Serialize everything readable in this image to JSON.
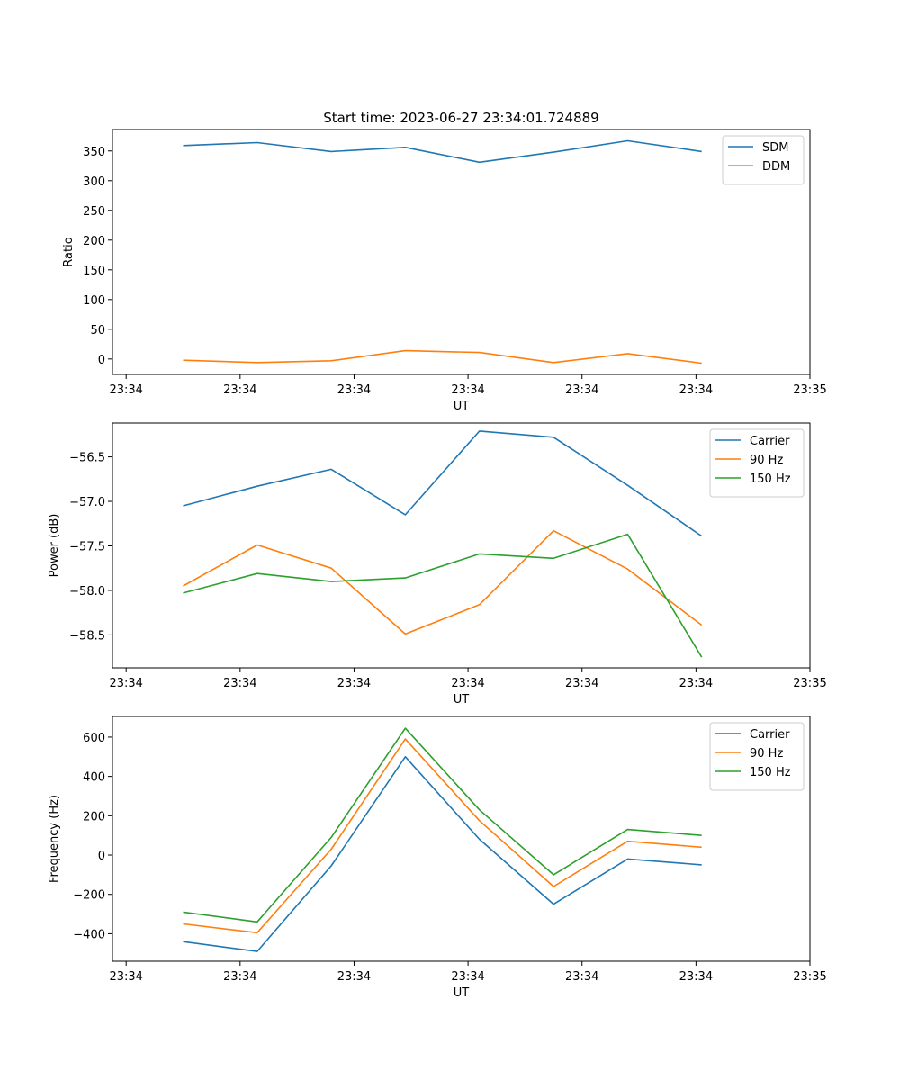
{
  "figure": {
    "title": "Start time: 2023-06-27 23:34:01.724889"
  },
  "colors": {
    "blue": "#1f77b4",
    "orange": "#ff7f0e",
    "green": "#2ca02c",
    "axis": "#000000",
    "legend_border": "#cccccc",
    "background": "#ffffff"
  },
  "chart_data": [
    {
      "type": "line",
      "title": "Start time: 2023-06-27 23:34:01.724889",
      "xlabel": "UT",
      "ylabel": "Ratio",
      "x_ticks": [
        "23:34",
        "23:34",
        "23:34",
        "23:34",
        "23:34",
        "23:34",
        "23:35"
      ],
      "x_tick_positions": [
        0,
        1,
        2,
        3,
        4,
        5,
        6
      ],
      "xlim": [
        -0.12,
        6.0
      ],
      "x": [
        0.5,
        1.15,
        1.8,
        2.45,
        3.1,
        3.75,
        4.4,
        5.05
      ],
      "ylim": [
        -26,
        386
      ],
      "y_ticks": [
        0,
        50,
        100,
        150,
        200,
        250,
        300,
        350
      ],
      "y_tick_labels": [
        "0",
        "50",
        "100",
        "150",
        "200",
        "250",
        "300",
        "350"
      ],
      "legend": "top-right",
      "grid": false,
      "series": [
        {
          "name": "SDM",
          "color": "#1f77b4",
          "values": [
            359,
            364,
            349,
            356,
            331,
            348,
            367,
            349
          ]
        },
        {
          "name": "DDM",
          "color": "#ff7f0e",
          "values": [
            -2,
            -6,
            -3,
            14,
            11,
            -6,
            9,
            -7
          ]
        }
      ]
    },
    {
      "type": "line",
      "xlabel": "UT",
      "ylabel": "Power (dB)",
      "x_ticks": [
        "23:34",
        "23:34",
        "23:34",
        "23:34",
        "23:34",
        "23:34",
        "23:35"
      ],
      "x_tick_positions": [
        0,
        1,
        2,
        3,
        4,
        5,
        6
      ],
      "xlim": [
        -0.12,
        6.0
      ],
      "x": [
        0.5,
        1.15,
        1.8,
        2.45,
        3.1,
        3.75,
        4.4,
        5.05
      ],
      "ylim": [
        -58.87,
        -56.12
      ],
      "y_ticks": [
        -58.5,
        -58.0,
        -57.5,
        -57.0,
        -56.5
      ],
      "y_tick_labels": [
        "−58.5",
        "−58.0",
        "−57.5",
        "−57.0",
        "−56.5"
      ],
      "legend": "top-right",
      "grid": false,
      "series": [
        {
          "name": "Carrier",
          "color": "#1f77b4",
          "values": [
            -57.05,
            -56.83,
            -56.64,
            -57.15,
            -56.21,
            -56.28,
            -56.82,
            -57.39
          ]
        },
        {
          "name": "90 Hz",
          "color": "#ff7f0e",
          "values": [
            -57.95,
            -57.49,
            -57.75,
            -58.49,
            -58.16,
            -57.33,
            -57.76,
            -58.39
          ]
        },
        {
          "name": "150 Hz",
          "color": "#2ca02c",
          "values": [
            -58.03,
            -57.81,
            -57.9,
            -57.86,
            -57.59,
            -57.64,
            -57.37,
            -58.75
          ]
        }
      ]
    },
    {
      "type": "line",
      "xlabel": "UT",
      "ylabel": "Frequency (Hz)",
      "x_ticks": [
        "23:34",
        "23:34",
        "23:34",
        "23:34",
        "23:34",
        "23:34",
        "23:35"
      ],
      "x_tick_positions": [
        0,
        1,
        2,
        3,
        4,
        5,
        6
      ],
      "xlim": [
        -0.12,
        6.0
      ],
      "x": [
        0.5,
        1.15,
        1.8,
        2.45,
        3.1,
        3.75,
        4.4,
        5.05
      ],
      "ylim": [
        -540,
        705
      ],
      "y_ticks": [
        -400,
        -200,
        0,
        200,
        400,
        600
      ],
      "y_tick_labels": [
        "−400",
        "−200",
        "0",
        "200",
        "400",
        "600"
      ],
      "legend": "top-right",
      "grid": false,
      "series": [
        {
          "name": "Carrier",
          "color": "#1f77b4",
          "values": [
            -440,
            -490,
            -55,
            500,
            80,
            -250,
            -20,
            -50
          ]
        },
        {
          "name": "90 Hz",
          "color": "#ff7f0e",
          "values": [
            -350,
            -395,
            30,
            590,
            175,
            -160,
            70,
            40
          ]
        },
        {
          "name": "150 Hz",
          "color": "#2ca02c",
          "values": [
            -290,
            -340,
            90,
            645,
            230,
            -100,
            130,
            100
          ]
        }
      ]
    }
  ]
}
